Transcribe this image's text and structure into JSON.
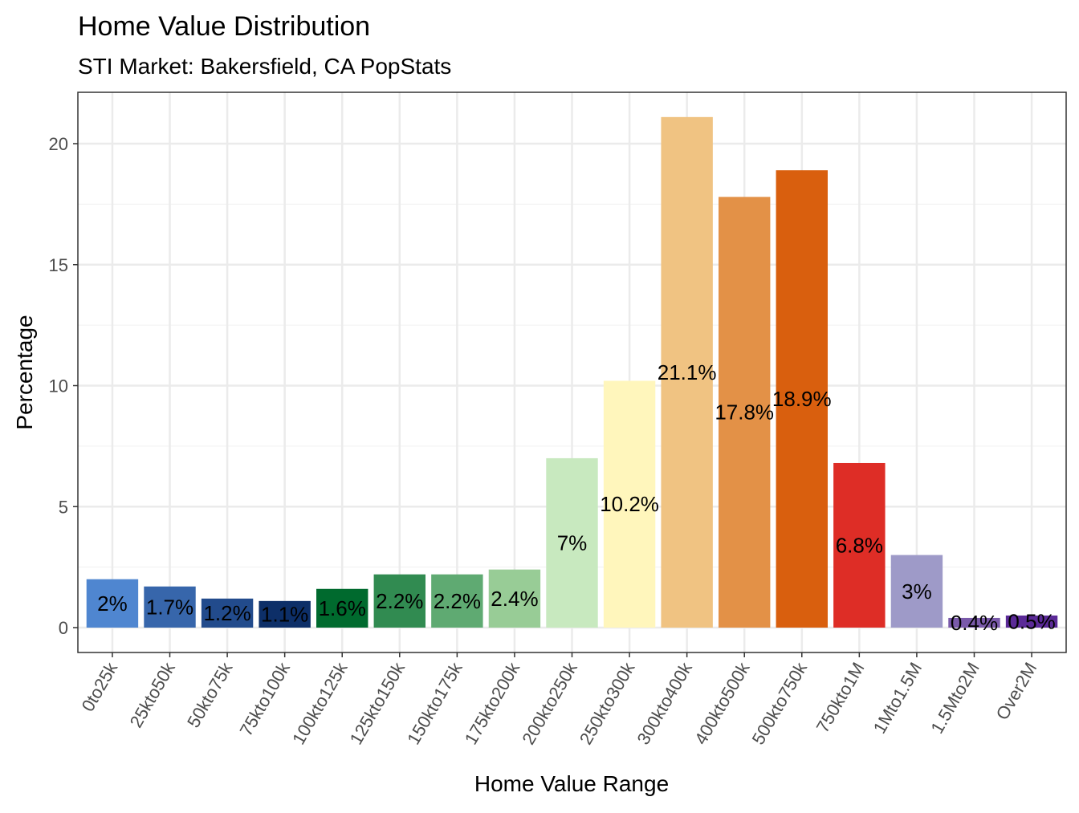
{
  "chart_data": {
    "type": "bar",
    "title": "Home Value Distribution",
    "subtitle": "STI Market: Bakersfield, CA PopStats",
    "xlabel": "Home Value Range",
    "ylabel": "Percentage",
    "ylim": [
      0,
      22
    ],
    "yticks": [
      0,
      5,
      10,
      15,
      20
    ],
    "grid": true,
    "legend": "none",
    "categories": [
      "0to25k",
      "25kto50k",
      "50kto75k",
      "75kto100k",
      "100kto125k",
      "125kto150k",
      "150kto175k",
      "175kto200k",
      "200kto250k",
      "250kto300k",
      "300kto400k",
      "400kto500k",
      "500kto750k",
      "750kto1M",
      "1Mto1.5M",
      "1.5Mto2M",
      "Over2M"
    ],
    "values": [
      2,
      1.7,
      1.2,
      1.1,
      1.6,
      2.2,
      2.2,
      2.4,
      7,
      10.2,
      21.1,
      17.8,
      18.9,
      6.8,
      3,
      0.4,
      0.5
    ],
    "data_labels": [
      "2%",
      "1.7%",
      "1.2%",
      "1.1%",
      "1.6%",
      "2.2%",
      "2.2%",
      "2.4%",
      "7%",
      "10.2%",
      "21.1%",
      "17.8%",
      "18.9%",
      "6.8%",
      "3%",
      "0.4%",
      "0.5%"
    ],
    "colors": [
      "#4F86D0",
      "#3766AB",
      "#224B8C",
      "#0D2F68",
      "#006A2E",
      "#318B51",
      "#5FAA72",
      "#98CC96",
      "#C8E9BF",
      "#FFF6BC",
      "#F0C382",
      "#E39147",
      "#D95F0E",
      "#DE2D26",
      "#9E9AC8",
      "#7A5AAA",
      "#5B2A97"
    ]
  }
}
